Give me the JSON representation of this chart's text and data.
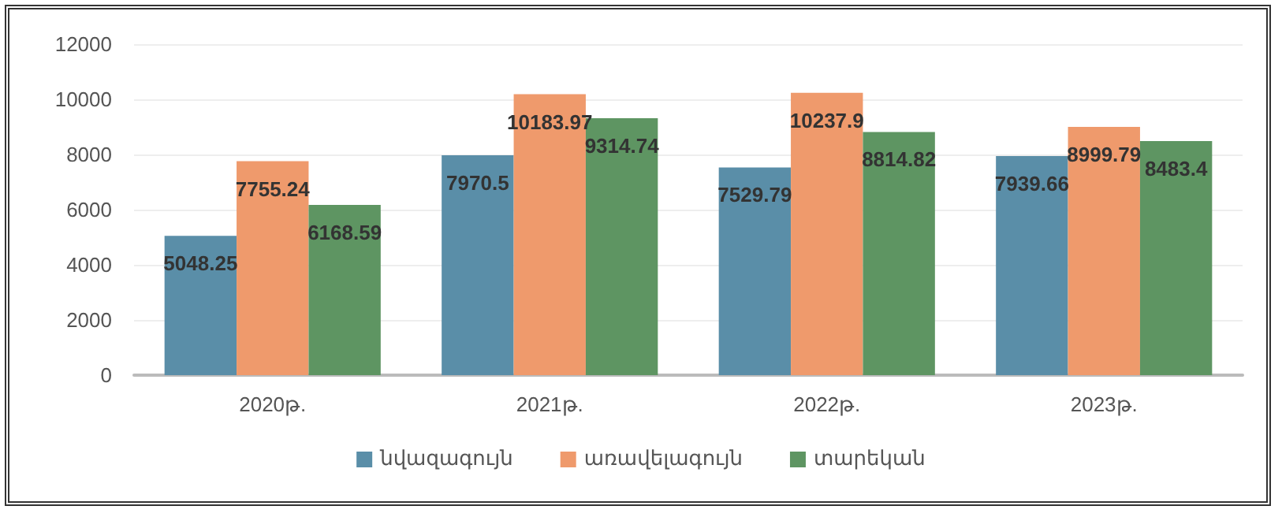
{
  "chart_data": {
    "type": "bar",
    "categories": [
      "2020թ.",
      "2021թ.",
      "2022թ.",
      "2023թ."
    ],
    "series": [
      {
        "name": "նվազագույն",
        "color": "#5a8ea8",
        "values": [
          5048.25,
          7970.5,
          7529.79,
          7939.66
        ]
      },
      {
        "name": "առավելագույն",
        "color": "#ef9a6c",
        "values": [
          7755.24,
          10183.97,
          10237.9,
          8999.79
        ]
      },
      {
        "name": "տարեկան",
        "color": "#5e9562",
        "values": [
          6168.59,
          9314.74,
          8814.82,
          8483.4
        ]
      }
    ],
    "ylim": [
      0,
      12000
    ],
    "yticks": [
      0,
      2000,
      4000,
      6000,
      8000,
      10000,
      12000
    ],
    "grid": "y",
    "legend": "bottom",
    "data_labels": true
  }
}
